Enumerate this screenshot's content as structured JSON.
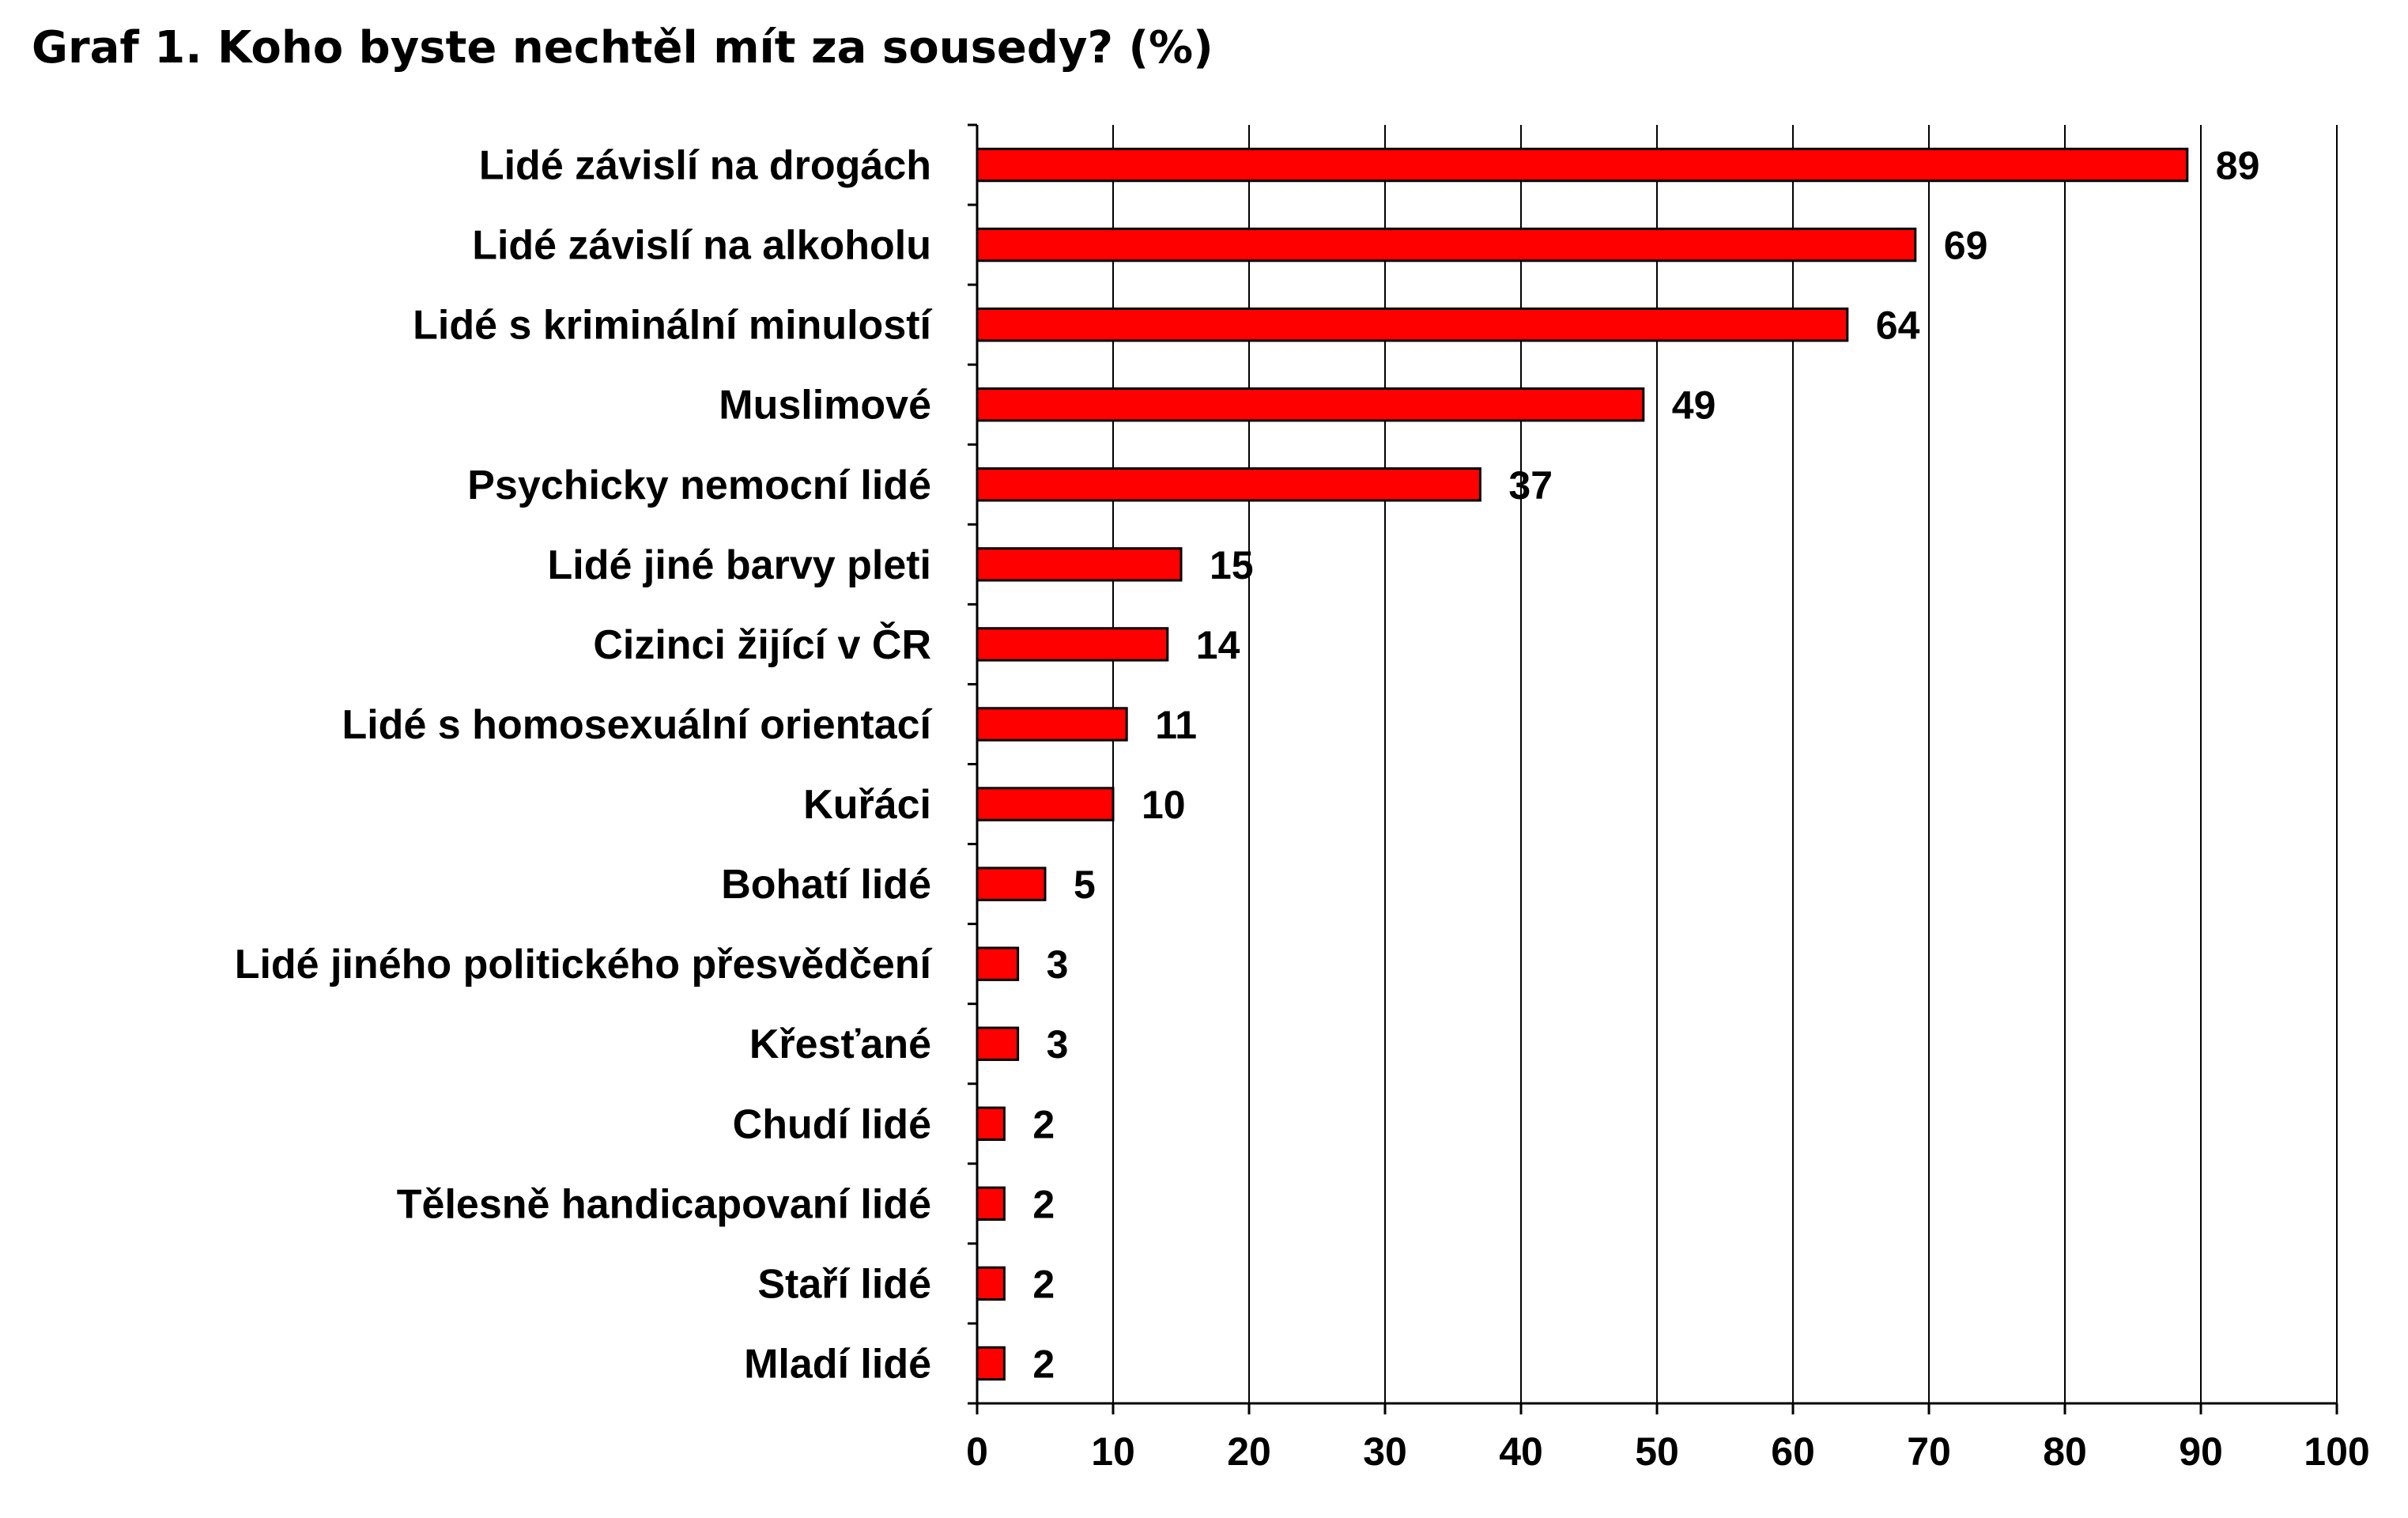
{
  "chart_data": {
    "type": "bar",
    "orientation": "horizontal",
    "title": "Graf 1. Koho byste nechtěl mít za sousedy? (%)",
    "categories": [
      "Lidé závislí na drogách",
      "Lidé závislí na alkoholu",
      "Lidé s kriminální minulostí",
      "Muslimové",
      "Psychicky nemocní lidé",
      "Lidé jiné barvy pleti",
      "Cizinci žijící v ČR",
      "Lidé s homosexuální orientací",
      "Kuřáci",
      "Bohatí lidé",
      "Lidé jiného politického přesvědčení",
      "Křesťané",
      "Chudí lidé",
      "Tělesně handicapovaní lidé",
      "Staří lidé",
      "Mladí lidé"
    ],
    "values": [
      89,
      69,
      64,
      49,
      37,
      15,
      14,
      11,
      10,
      5,
      3,
      3,
      2,
      2,
      2,
      2
    ],
    "xlim": [
      0,
      100
    ],
    "xticks": [
      0,
      10,
      20,
      30,
      40,
      50,
      60,
      70,
      80,
      90,
      100
    ],
    "grid": "vertical",
    "bar_color": "#ff0000",
    "bar_edge_color": "#000000",
    "legend": "none"
  }
}
